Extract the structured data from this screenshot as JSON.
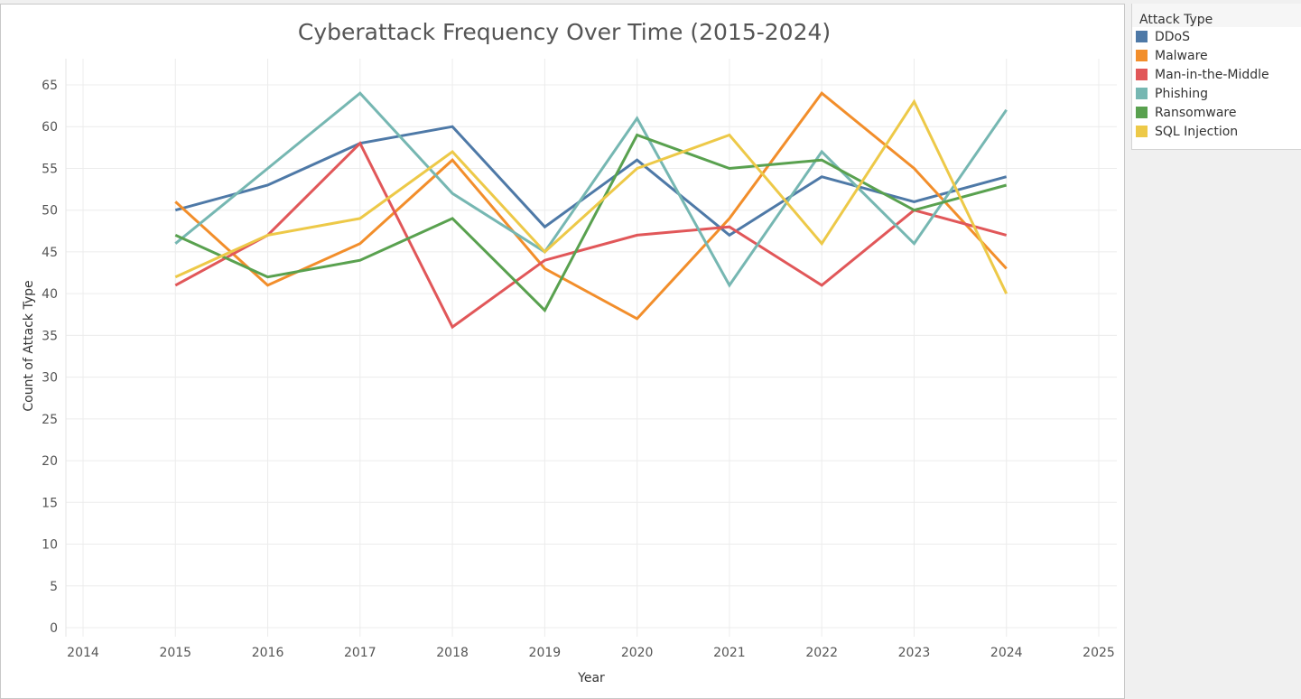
{
  "chart_data": {
    "type": "line",
    "title": "Cyberattack Frequency Over Time (2015-2024)",
    "xlabel": "Year",
    "ylabel": "Count of Attack Type",
    "x_ticks": [
      2014,
      2015,
      2016,
      2017,
      2018,
      2019,
      2020,
      2021,
      2022,
      2023,
      2024,
      2025
    ],
    "xlim": [
      2014,
      2025
    ],
    "y_ticks": [
      0,
      5,
      10,
      15,
      20,
      25,
      30,
      35,
      40,
      45,
      50,
      55,
      60,
      65
    ],
    "ylim": [
      0,
      65
    ],
    "x": [
      2015,
      2016,
      2017,
      2018,
      2019,
      2020,
      2021,
      2022,
      2023,
      2024
    ],
    "grid": true,
    "legend": {
      "title": "Attack Type",
      "placement": "right"
    },
    "series": [
      {
        "name": "DDoS",
        "color": "#4e79a7",
        "values": [
          50,
          53,
          58,
          60,
          48,
          56,
          47,
          54,
          51,
          54
        ]
      },
      {
        "name": "Malware",
        "color": "#f28e2b",
        "values": [
          51,
          41,
          46,
          56,
          43,
          37,
          49,
          64,
          55,
          43
        ]
      },
      {
        "name": "Man-in-the-Middle",
        "color": "#e15759",
        "values": [
          41,
          47,
          58,
          36,
          44,
          47,
          48,
          41,
          50,
          47
        ]
      },
      {
        "name": "Phishing",
        "color": "#76b7b2",
        "values": [
          46,
          55,
          64,
          52,
          45,
          61,
          41,
          57,
          46,
          62
        ]
      },
      {
        "name": "Ransomware",
        "color": "#59a14f",
        "values": [
          47,
          42,
          44,
          49,
          38,
          59,
          55,
          56,
          50,
          53
        ]
      },
      {
        "name": "SQL Injection",
        "color": "#edc948",
        "values": [
          42,
          47,
          49,
          57,
          45,
          55,
          59,
          46,
          63,
          40
        ]
      }
    ]
  }
}
